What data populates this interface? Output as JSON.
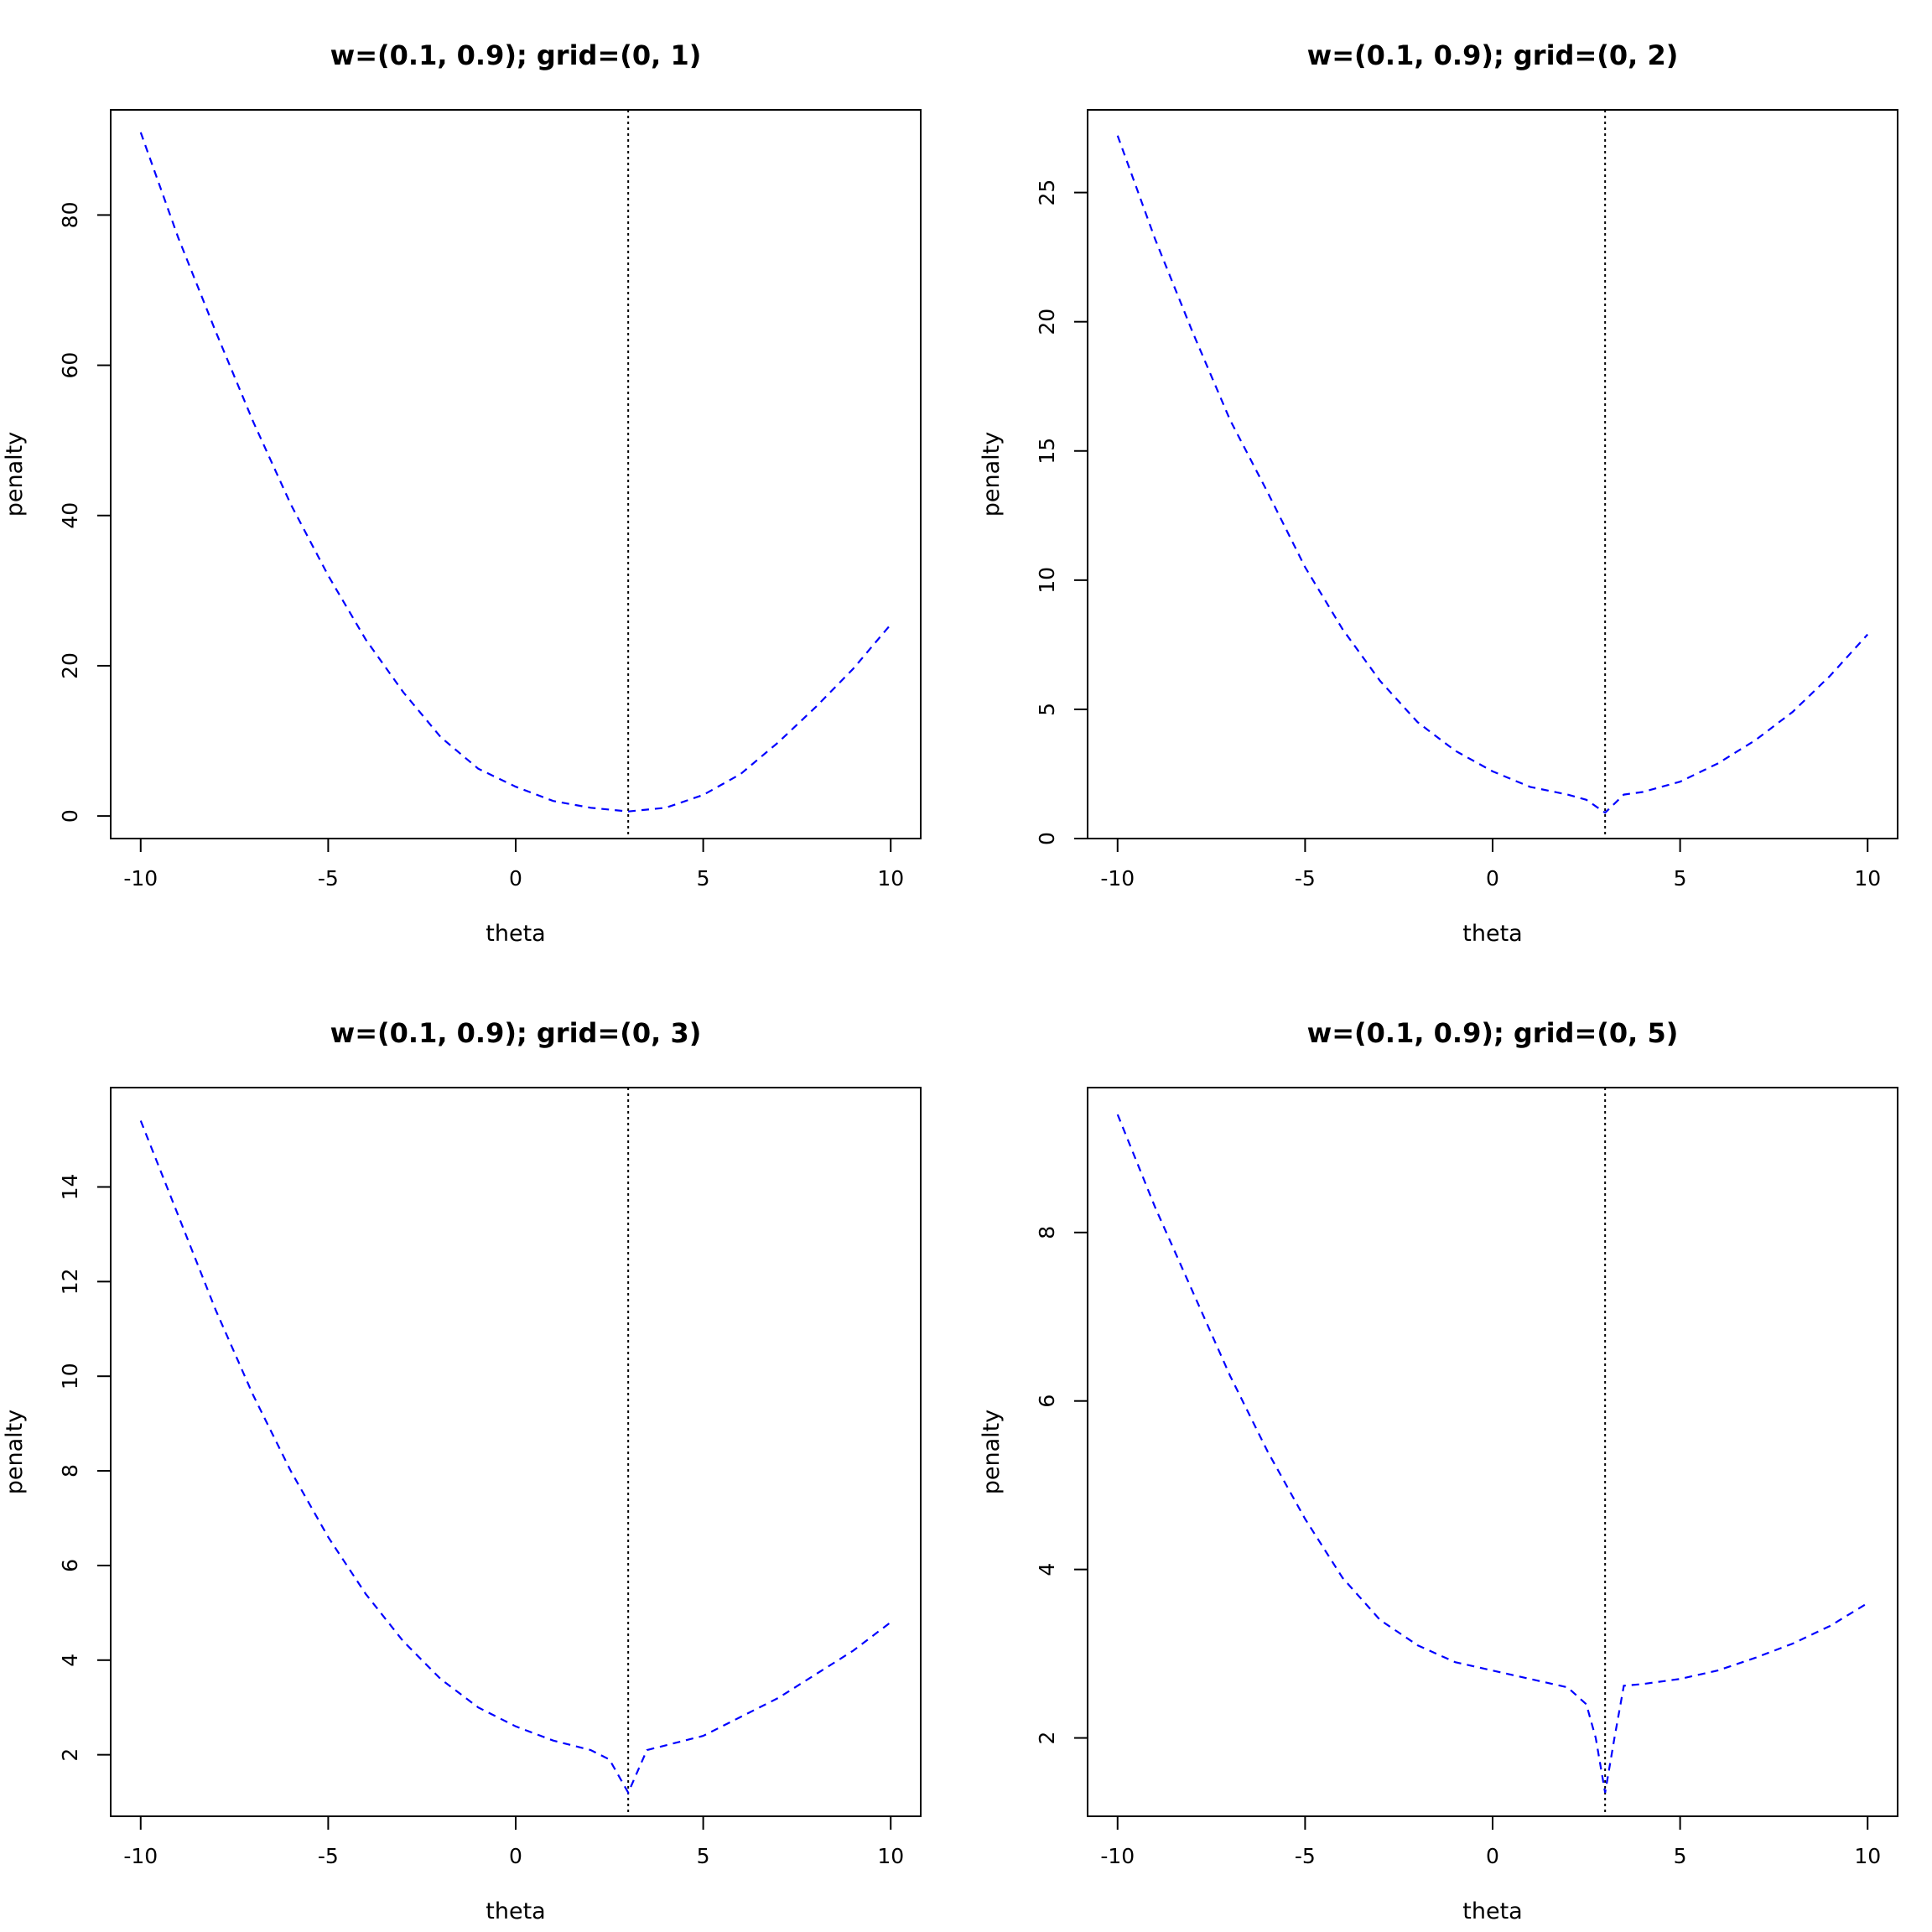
{
  "chart_data": [
    {
      "type": "line",
      "title": "w=(0.1, 0.9); grid=(0, 1)",
      "xlabel": "theta",
      "ylabel": "penalty",
      "xlim": [
        -10,
        10
      ],
      "ylim": [
        -3,
        94
      ],
      "xticks": [
        -10,
        -5,
        0,
        5,
        10
      ],
      "yticks": [
        0,
        20,
        40,
        60,
        80
      ],
      "vline_x": 3,
      "grid": false,
      "legend": "none",
      "series": [
        {
          "color": "#0000ff",
          "x": [
            -10,
            -9,
            -8,
            -7,
            -6,
            -5,
            -4,
            -3,
            -2,
            -1,
            0,
            1,
            2,
            3,
            4,
            5,
            6,
            7,
            8,
            9,
            10
          ],
          "y": [
            91,
            77,
            64.5,
            52.5,
            41.5,
            32,
            23.5,
            16.5,
            10.5,
            6.3,
            3.9,
            2,
            1.1,
            0.6,
            1.1,
            2.8,
            5.6,
            9.8,
            14.5,
            19.6,
            25.5
          ]
        }
      ]
    },
    {
      "type": "line",
      "title": "w=(0.1, 0.9); grid=(0, 2)",
      "xlabel": "theta",
      "ylabel": "penalty",
      "xlim": [
        -10,
        10
      ],
      "ylim": [
        0,
        28.2
      ],
      "xticks": [
        -10,
        -5,
        0,
        5,
        10
      ],
      "yticks": [
        0,
        5,
        10,
        15,
        20,
        25
      ],
      "vline_x": 3,
      "grid": false,
      "legend": "none",
      "series": [
        {
          "color": "#0000ff",
          "x": [
            -10,
            -9,
            -8,
            -7,
            -6,
            -5,
            -4,
            -3,
            -2,
            -1,
            0,
            1,
            2,
            2.5,
            3,
            3.5,
            4,
            5,
            6,
            7,
            8,
            9,
            10
          ],
          "y": [
            27.2,
            23.2,
            19.6,
            16.2,
            13.4,
            10.5,
            8.1,
            6.1,
            4.5,
            3.4,
            2.6,
            2.0,
            1.7,
            1.5,
            1.0,
            1.7,
            1.8,
            2.2,
            2.9,
            3.8,
            4.9,
            6.3,
            7.9
          ]
        }
      ]
    },
    {
      "type": "line",
      "title": "w=(0.1, 0.9); grid=(0, 3)",
      "xlabel": "theta",
      "ylabel": "penalty",
      "xlim": [
        -10,
        10
      ],
      "ylim": [
        0.7,
        16.1
      ],
      "xticks": [
        -10,
        -5,
        0,
        5,
        10
      ],
      "yticks": [
        2,
        4,
        6,
        8,
        10,
        12,
        14
      ],
      "vline_x": 3,
      "grid": false,
      "legend": "none",
      "series": [
        {
          "color": "#0000ff",
          "x": [
            -10,
            -9,
            -8,
            -7,
            -6,
            -5,
            -4,
            -3,
            -2,
            -1,
            0,
            1,
            2,
            2.5,
            3,
            3.5,
            4,
            5,
            6,
            7,
            8,
            9,
            10
          ],
          "y": [
            15.4,
            13.4,
            11.4,
            9.6,
            8.0,
            6.6,
            5.4,
            4.4,
            3.6,
            3.0,
            2.6,
            2.3,
            2.1,
            1.9,
            1.2,
            2.1,
            2.2,
            2.4,
            2.8,
            3.2,
            3.7,
            4.2,
            4.8
          ]
        }
      ]
    },
    {
      "type": "line",
      "title": "w=(0.1, 0.9); grid=(0, 5)",
      "xlabel": "theta",
      "ylabel": "penalty",
      "xlim": [
        -10,
        10
      ],
      "ylim": [
        1.07,
        9.72
      ],
      "xticks": [
        -10,
        -5,
        0,
        5,
        10
      ],
      "yticks": [
        2,
        4,
        6,
        8
      ],
      "vline_x": 3,
      "grid": false,
      "legend": "none",
      "series": [
        {
          "color": "#0000ff",
          "x": [
            -10,
            -9,
            -8,
            -7,
            -6,
            -5,
            -4,
            -3,
            -2,
            -1,
            0,
            1,
            2,
            2.5,
            2.75,
            3,
            3.25,
            3.5,
            4,
            5,
            6,
            7,
            8,
            9,
            10
          ],
          "y": [
            9.4,
            8.3,
            7.3,
            6.3,
            5.4,
            4.6,
            3.9,
            3.4,
            3.1,
            2.9,
            2.8,
            2.7,
            2.6,
            2.4,
            2.0,
            1.35,
            2.0,
            2.62,
            2.64,
            2.7,
            2.8,
            2.95,
            3.12,
            3.33,
            3.6
          ]
        }
      ]
    }
  ]
}
